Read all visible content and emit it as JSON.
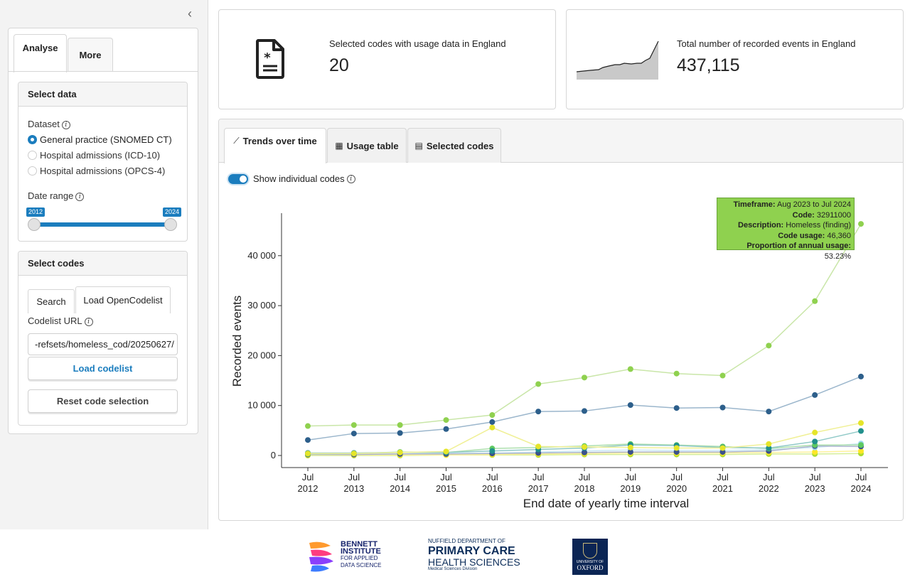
{
  "sidebar": {
    "tabs": [
      "Analyse",
      "More"
    ],
    "select_data": {
      "heading": "Select data",
      "dataset_label": "Dataset",
      "options": [
        "General practice (SNOMED CT)",
        "Hospital admissions (ICD-10)",
        "Hospital admissions (OPCS-4)"
      ],
      "selected": "General practice (SNOMED CT)",
      "date_range_label": "Date range",
      "range_start": "2012",
      "range_end": "2024"
    },
    "select_codes": {
      "heading": "Select codes",
      "tabs": [
        "Search",
        "Load OpenCodelist"
      ],
      "codelist_url_label": "Codelist URL",
      "codelist_url_value": "-refsets/homeless_cod/20250627/",
      "load_button": "Load codelist",
      "reset_button": "Reset code selection"
    }
  },
  "summary": {
    "codes_label": "Selected codes with usage data in England",
    "codes_value": "20",
    "events_label": "Total number of recorded events in England",
    "events_value": "437,115"
  },
  "main_tabs": [
    "Trends over time",
    "Usage table",
    "Selected codes"
  ],
  "toggle": {
    "label": "Show individual codes",
    "on": true
  },
  "tooltip": {
    "timeframe_label": "Timeframe:",
    "timeframe": "Aug 2023 to Jul 2024",
    "code_label": "Code:",
    "code": "32911000",
    "description_label": "Description:",
    "description": "Homeless (finding)",
    "usage_label": "Code usage:",
    "usage": "46,360",
    "proportion_label": "Proportion of annual usage:",
    "proportion": "53.23%"
  },
  "chart_data": {
    "type": "line",
    "xlabel": "End date of yearly time interval",
    "ylabel": "Recorded events",
    "categories": [
      "Jul\n2012",
      "Jul\n2013",
      "Jul\n2014",
      "Jul\n2015",
      "Jul\n2016",
      "Jul\n2017",
      "Jul\n2018",
      "Jul\n2019",
      "Jul\n2020",
      "Jul\n2021",
      "Jul\n2022",
      "Jul\n2023",
      "Jul\n2024"
    ],
    "yticks": [
      "0",
      "10 000",
      "20 000",
      "30 000",
      "40 000"
    ],
    "ylim": [
      0,
      48000
    ],
    "series": [
      {
        "color": "#8fd14f",
        "line": "#c9e6a8",
        "values": [
          5900,
          6100,
          6100,
          7100,
          8100,
          14300,
          15600,
          17300,
          16400,
          16000,
          22000,
          30900,
          46360
        ]
      },
      {
        "color": "#2d5f8b",
        "line": "#9bb6cc",
        "values": [
          3100,
          4400,
          4500,
          5300,
          6700,
          8800,
          8900,
          10100,
          9500,
          9600,
          8800,
          12100,
          15800
        ]
      },
      {
        "color": "#e5e52a",
        "line": "#f0f096",
        "values": [
          400,
          400,
          600,
          800,
          5600,
          1800,
          1700,
          1600,
          1500,
          1500,
          2300,
          4600,
          6500
        ]
      },
      {
        "color": "#21908c",
        "line": "#8fc9c7",
        "values": [
          500,
          500,
          600,
          600,
          900,
          1200,
          1500,
          2100,
          2000,
          1600,
          1500,
          2800,
          4900
        ]
      },
      {
        "color": "#5ec962",
        "line": "#addfae",
        "values": [
          300,
          400,
          700,
          600,
          1400,
          1600,
          1900,
          2300,
          2100,
          1800,
          1400,
          2100,
          2100
        ]
      },
      {
        "color": "#3b528b",
        "line": "#aab4cc",
        "values": [
          200,
          200,
          300,
          300,
          400,
          500,
          600,
          700,
          700,
          700,
          900,
          1900,
          1800
        ]
      },
      {
        "color": "#9fd9f0",
        "line": "#cbe9f5",
        "values": [
          300,
          300,
          300,
          400,
          500,
          700,
          900,
          1100,
          1000,
          1000,
          1200,
          1600,
          2400
        ]
      },
      {
        "color": "#fde725",
        "line": "#fef29b",
        "values": [
          100,
          100,
          100,
          100,
          200,
          300,
          400,
          500,
          500,
          500,
          600,
          700,
          900
        ]
      },
      {
        "color": "#addc30",
        "line": "#d6ee98",
        "values": [
          0,
          0,
          0,
          100,
          100,
          100,
          200,
          200,
          200,
          200,
          300,
          300,
          400
        ]
      }
    ]
  },
  "footer": {
    "bennett": [
      "BENNETT",
      "INSTITUTE",
      "FOR APPLIED",
      "DATA SCIENCE"
    ],
    "nuffield": [
      "NUFFIELD DEPARTMENT OF",
      "PRIMARY CARE",
      "HEALTH SCIENCES",
      "Medical Sciences Division"
    ],
    "oxford": [
      "UNIVERSITY OF",
      "OXFORD"
    ]
  }
}
